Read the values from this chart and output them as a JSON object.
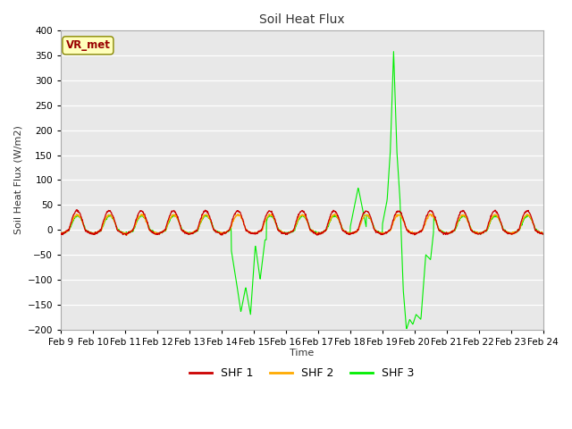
{
  "title": "Soil Heat Flux",
  "ylabel": "Soil Heat Flux (W/m2)",
  "xlabel": "Time",
  "ylim": [
    -200,
    400
  ],
  "yticks": [
    -200,
    -150,
    -100,
    -50,
    0,
    50,
    100,
    150,
    200,
    250,
    300,
    350,
    400
  ],
  "colors": {
    "SHF 1": "#cc0000",
    "SHF 2": "#ffaa00",
    "SHF 3": "#00ee00"
  },
  "legend_label": "VR_met",
  "fig_bg": "#ffffff",
  "plot_bg": "#e8e8e8",
  "grid_color": "#ffffff",
  "xticklabels": [
    "Feb 9",
    "Feb 10",
    "Feb 11",
    "Feb 12",
    "Feb 13",
    "Feb 14",
    "Feb 15",
    "Feb 16",
    "Feb 17",
    "Feb 18",
    "Feb 19",
    "Feb 20",
    "Feb 21",
    "Feb 22",
    "Feb 23",
    "Feb 24"
  ],
  "n_points": 1440,
  "title_fontsize": 10,
  "label_fontsize": 8,
  "tick_fontsize": 7.5
}
